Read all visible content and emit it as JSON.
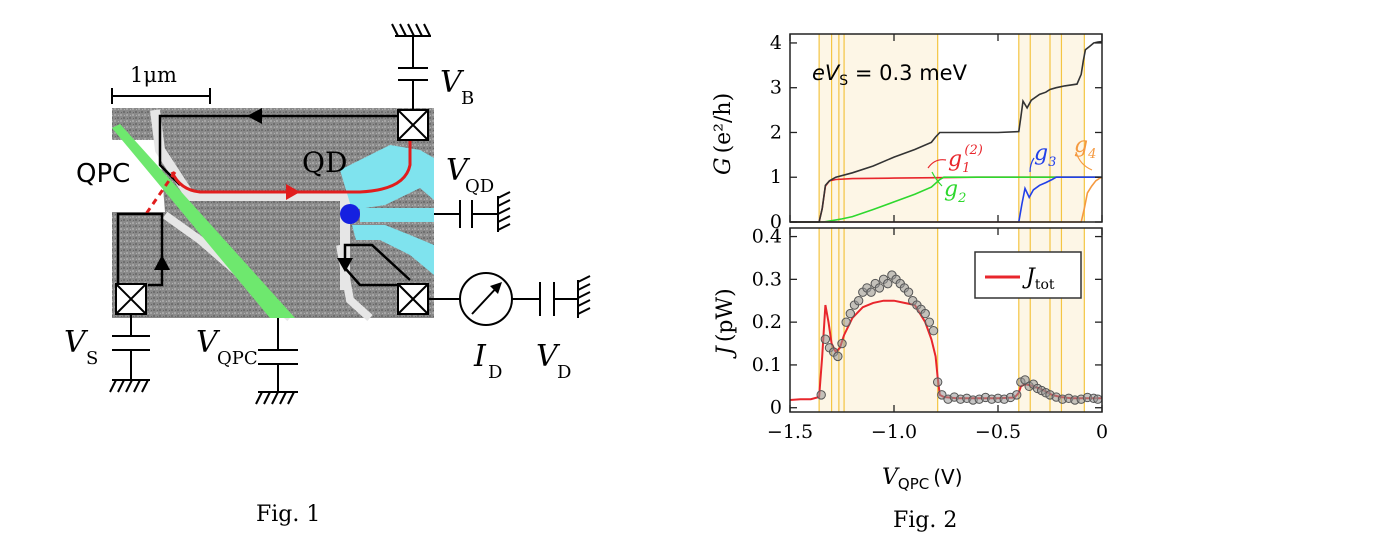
{
  "fig1": {
    "caption": "Fig. 1",
    "scale_bar": "1μm",
    "labels": {
      "qpc": "QPC",
      "qd": "QD",
      "vb_sym": "V",
      "vb_sub": "B",
      "vqd_sym": "V",
      "vqd_sub": "QD",
      "vs_sym": "V",
      "vs_sub": "S",
      "vqpc_sym": "V",
      "vqpc_sub": "QPC",
      "id_sym": "I",
      "id_sub": "D",
      "vd_sym": "V",
      "vd_sub": "D"
    },
    "colors": {
      "sample": "#8e8e8e",
      "gate_green": "#6ee86e",
      "gate_cyan": "#7fe3ee",
      "edge_red": "#e11d1d",
      "dot_blue": "#1520e0"
    }
  },
  "fig2": {
    "caption": "Fig. 2",
    "chart_data": [
      {
        "type": "line",
        "ylabel_sym": "G",
        "ylabel_unit": "(e²/h)",
        "ylim": [
          0,
          4.2
        ],
        "xlim": [
          -1.5,
          0
        ],
        "yticks": [
          "0",
          "1",
          "2",
          "3",
          "4"
        ],
        "annotation_pre": "eV",
        "annotation_sub": "S",
        "annotation_post": " = 0.3 meV",
        "series": [
          {
            "name": "g1(2)",
            "label_sym": "g",
            "label_sub": "1",
            "label_sup": "(2)",
            "color": "#e8262c",
            "x": [
              -1.5,
              -1.36,
              -1.345,
              -1.33,
              -1.31,
              -1.28,
              -1.2,
              -1.0,
              -0.8,
              -0.6,
              -0.4,
              -0.2,
              0
            ],
            "y": [
              0,
              0,
              0.3,
              0.8,
              0.92,
              0.95,
              0.97,
              0.98,
              0.99,
              1.0,
              1.0,
              1.0,
              1.0
            ]
          },
          {
            "name": "g2",
            "label_sym": "g",
            "label_sub": "2",
            "color": "#2ed82e",
            "x": [
              -1.5,
              -1.34,
              -1.3,
              -1.25,
              -1.2,
              -1.1,
              -1.0,
              -0.9,
              -0.82,
              -0.78,
              -0.76,
              -0.5,
              0
            ],
            "y": [
              0,
              0,
              0.03,
              0.07,
              0.12,
              0.28,
              0.45,
              0.62,
              0.78,
              0.95,
              1.0,
              1.0,
              1.0
            ]
          },
          {
            "name": "g3",
            "label_sym": "g",
            "label_sub": "3",
            "color": "#2240e8",
            "x": [
              -1.5,
              -0.4,
              -0.385,
              -0.37,
              -0.35,
              -0.33,
              -0.3,
              -0.27,
              -0.24,
              -0.22,
              0
            ],
            "y": [
              0,
              0,
              0.4,
              0.75,
              0.55,
              0.72,
              0.82,
              0.88,
              0.95,
              1.0,
              1.0
            ]
          },
          {
            "name": "g4",
            "label_sym": "g",
            "label_sub": "4",
            "color": "#f59a40",
            "x": [
              -1.5,
              -0.1,
              -0.085,
              -0.07,
              -0.05,
              -0.03,
              -0.01,
              0
            ],
            "y": [
              0,
              0,
              0.3,
              0.65,
              0.8,
              0.92,
              0.98,
              1.0
            ]
          },
          {
            "name": "G",
            "color": "#333333",
            "x": [
              -1.5,
              -1.36,
              -1.345,
              -1.33,
              -1.31,
              -1.28,
              -1.2,
              -1.1,
              -1.0,
              -0.9,
              -0.82,
              -0.8,
              -0.78,
              -0.7,
              -0.5,
              -0.4,
              -0.39,
              -0.38,
              -0.36,
              -0.34,
              -0.3,
              -0.27,
              -0.25,
              -0.22,
              -0.2,
              -0.18,
              -0.12,
              -0.1,
              -0.09,
              -0.08,
              -0.06,
              -0.04,
              -0.02,
              0
            ],
            "y": [
              0,
              0,
              0.3,
              0.82,
              0.92,
              1.0,
              1.1,
              1.25,
              1.45,
              1.62,
              1.78,
              1.9,
              2.0,
              2.0,
              2.0,
              2.02,
              2.35,
              2.7,
              2.55,
              2.72,
              2.85,
              2.9,
              2.96,
              3.0,
              3.02,
              3.04,
              3.08,
              3.3,
              3.6,
              3.85,
              3.92,
              4.0,
              4.02,
              4.03
            ]
          }
        ]
      },
      {
        "type": "scatter",
        "ylabel_sym": "J",
        "ylabel_unit": "(pW)",
        "xlabel_sym": "V",
        "xlabel_sub": "QPC",
        "xlabel_unit": "(V)",
        "ylim": [
          -0.01,
          0.42
        ],
        "xlim": [
          -1.5,
          0
        ],
        "yticks": [
          "0",
          "0.1",
          "0.2",
          "0.3",
          "0.4"
        ],
        "xticks": [
          "−1.5",
          "−1.0",
          "−0.5",
          "0"
        ],
        "legend": {
          "sym": "J",
          "sub": "tot",
          "color": "#e8262c",
          "position": "top-right"
        },
        "series": [
          {
            "name": "J_tot",
            "kind": "line",
            "color": "#e8262c",
            "x": [
              -1.5,
              -1.45,
              -1.4,
              -1.36,
              -1.345,
              -1.33,
              -1.315,
              -1.3,
              -1.28,
              -1.26,
              -1.24,
              -1.2,
              -1.15,
              -1.1,
              -1.05,
              -1.0,
              -0.95,
              -0.9,
              -0.85,
              -0.82,
              -0.8,
              -0.79,
              -0.78,
              -0.76,
              -0.7,
              -0.6,
              -0.5,
              -0.42,
              -0.4,
              -0.39,
              -0.37,
              -0.34,
              -0.3,
              -0.27,
              -0.24,
              -0.2,
              -0.15,
              -0.1,
              -0.05,
              0
            ],
            "y": [
              0.018,
              0.02,
              0.02,
              0.025,
              0.12,
              0.24,
              0.2,
              0.15,
              0.13,
              0.14,
              0.17,
              0.21,
              0.235,
              0.245,
              0.25,
              0.25,
              0.245,
              0.24,
              0.2,
              0.16,
              0.12,
              0.07,
              0.03,
              0.025,
              0.022,
              0.022,
              0.022,
              0.024,
              0.035,
              0.05,
              0.055,
              0.052,
              0.045,
              0.038,
              0.03,
              0.025,
              0.022,
              0.022,
              0.022,
              0.022
            ]
          },
          {
            "name": "data",
            "kind": "points",
            "color": "#555555",
            "x": [
              -1.35,
              -1.33,
              -1.31,
              -1.29,
              -1.27,
              -1.25,
              -1.23,
              -1.21,
              -1.19,
              -1.17,
              -1.15,
              -1.13,
              -1.11,
              -1.09,
              -1.07,
              -1.05,
              -1.03,
              -1.01,
              -0.99,
              -0.97,
              -0.95,
              -0.93,
              -0.91,
              -0.89,
              -0.87,
              -0.85,
              -0.83,
              -0.81,
              -0.79,
              -0.77,
              -0.74,
              -0.71,
              -0.68,
              -0.65,
              -0.62,
              -0.59,
              -0.56,
              -0.53,
              -0.5,
              -0.47,
              -0.44,
              -0.41,
              -0.39,
              -0.37,
              -0.35,
              -0.33,
              -0.31,
              -0.29,
              -0.27,
              -0.25,
              -0.22,
              -0.19,
              -0.16,
              -0.13,
              -0.1,
              -0.07,
              -0.04,
              -0.02
            ],
            "y": [
              0.03,
              0.16,
              0.14,
              0.13,
              0.12,
              0.15,
              0.2,
              0.22,
              0.24,
              0.25,
              0.27,
              0.28,
              0.27,
              0.29,
              0.28,
              0.3,
              0.29,
              0.31,
              0.3,
              0.29,
              0.28,
              0.27,
              0.25,
              0.24,
              0.23,
              0.22,
              0.2,
              0.18,
              0.06,
              0.03,
              0.02,
              0.025,
              0.02,
              0.022,
              0.018,
              0.02,
              0.024,
              0.02,
              0.022,
              0.02,
              0.024,
              0.03,
              0.06,
              0.065,
              0.05,
              0.055,
              0.045,
              0.04,
              0.035,
              0.03,
              0.025,
              0.02,
              0.022,
              0.018,
              0.02,
              0.024,
              0.022,
              0.02
            ]
          }
        ]
      }
    ],
    "highlight_band_color": "#fdf6e6",
    "vline_color": "#f4c542",
    "vlines": [
      -1.36,
      -1.3,
      -1.265,
      -1.24,
      -0.79,
      -0.4,
      -0.345,
      -0.25,
      -0.195,
      -0.085
    ]
  }
}
